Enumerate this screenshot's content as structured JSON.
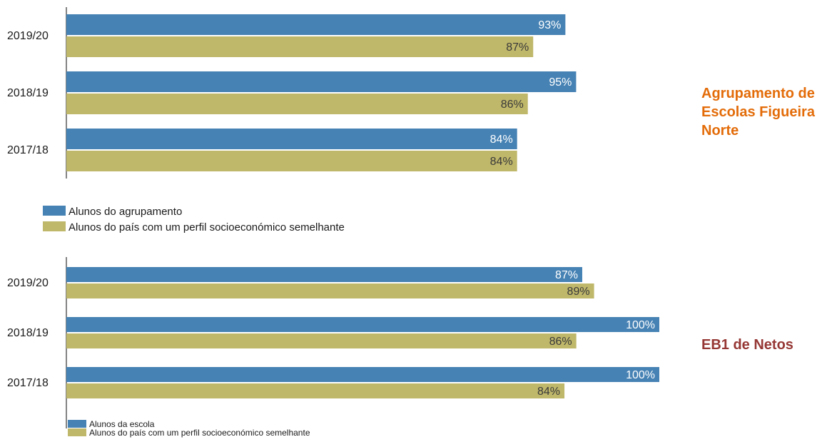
{
  "colors": {
    "series_primary": "#4682b4",
    "series_secondary": "#bfb76a",
    "label_on_primary": "#ffffff",
    "label_on_secondary": "#3a3a3a",
    "axis": "#333333"
  },
  "chart_data": [
    {
      "type": "bar",
      "orientation": "horizontal",
      "side_title": "Agrupamento de Escolas Figueira Norte",
      "side_title_color": "#e36c09",
      "categories": [
        "2019/20",
        "2018/19",
        "2017/18"
      ],
      "series": [
        {
          "name": "Alunos do agrupamento",
          "values": [
            93,
            95,
            84
          ],
          "labels": [
            "93%",
            "95%",
            "84%"
          ]
        },
        {
          "name": "Alunos do país com um perfil socioeconómico semelhante",
          "values": [
            87,
            86,
            84
          ],
          "labels": [
            "87%",
            "86%",
            "84%"
          ]
        }
      ],
      "xlim": [
        0,
        100
      ],
      "grid": false,
      "legend": "bottom-left"
    },
    {
      "type": "bar",
      "orientation": "horizontal",
      "side_title": "EB1 de Netos",
      "side_title_color": "#953734",
      "categories": [
        "2019/20",
        "2018/19",
        "2017/18"
      ],
      "series": [
        {
          "name": "Alunos da escola",
          "values": [
            87,
            100,
            100
          ],
          "labels": [
            "87%",
            "100%",
            "100%"
          ]
        },
        {
          "name": "Alunos do país com um perfil socioeconómico semelhante",
          "values": [
            89,
            86,
            84
          ],
          "labels": [
            "89%",
            "86%",
            "84%"
          ]
        }
      ],
      "xlim": [
        0,
        100
      ],
      "grid": false,
      "legend": "bottom-left"
    }
  ]
}
